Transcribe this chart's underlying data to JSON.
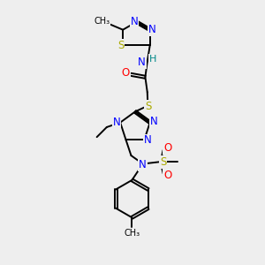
{
  "bg_color": "#eeeeee",
  "atom_colors": {
    "N": "#0000FF",
    "S": "#AAAA00",
    "O": "#FF0000",
    "C": "#000000",
    "H": "#008888"
  },
  "bond_color": "#000000",
  "figsize": [
    3.0,
    3.0
  ],
  "dpi": 100
}
